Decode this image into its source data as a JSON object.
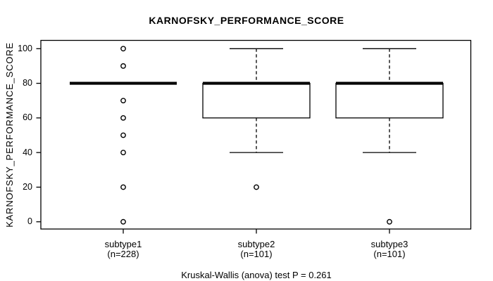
{
  "chart_data": {
    "type": "boxplot",
    "title": "KARNOFSKY_PERFORMANCE_SCORE",
    "ylabel": "KARNOFSKY_PERFORMANCE_SCORE",
    "caption": "Kruskal-Wallis (anova) test P = 0.261",
    "ylim": [
      0,
      100
    ],
    "yticks": [
      0,
      20,
      40,
      60,
      80,
      100
    ],
    "grid": false,
    "legend": "none",
    "colors": {
      "line": "#000000",
      "background": "#ffffff",
      "box_fill": "#ffffff"
    },
    "groups": [
      {
        "label": "subtype1",
        "n_label": "(n=228)",
        "n": 228,
        "q1": 80,
        "median": 80,
        "q3": 80,
        "whisker_low": 80,
        "whisker_high": 80,
        "outliers": [
          100,
          90,
          70,
          60,
          50,
          40,
          20,
          0
        ]
      },
      {
        "label": "subtype2",
        "n_label": "(n=101)",
        "n": 101,
        "q1": 60,
        "median": 80,
        "q3": 80,
        "whisker_low": 40,
        "whisker_high": 100,
        "outliers": [
          20
        ]
      },
      {
        "label": "subtype3",
        "n_label": "(n=101)",
        "n": 101,
        "q1": 60,
        "median": 80,
        "q3": 80,
        "whisker_low": 40,
        "whisker_high": 100,
        "outliers": [
          0
        ]
      }
    ]
  }
}
